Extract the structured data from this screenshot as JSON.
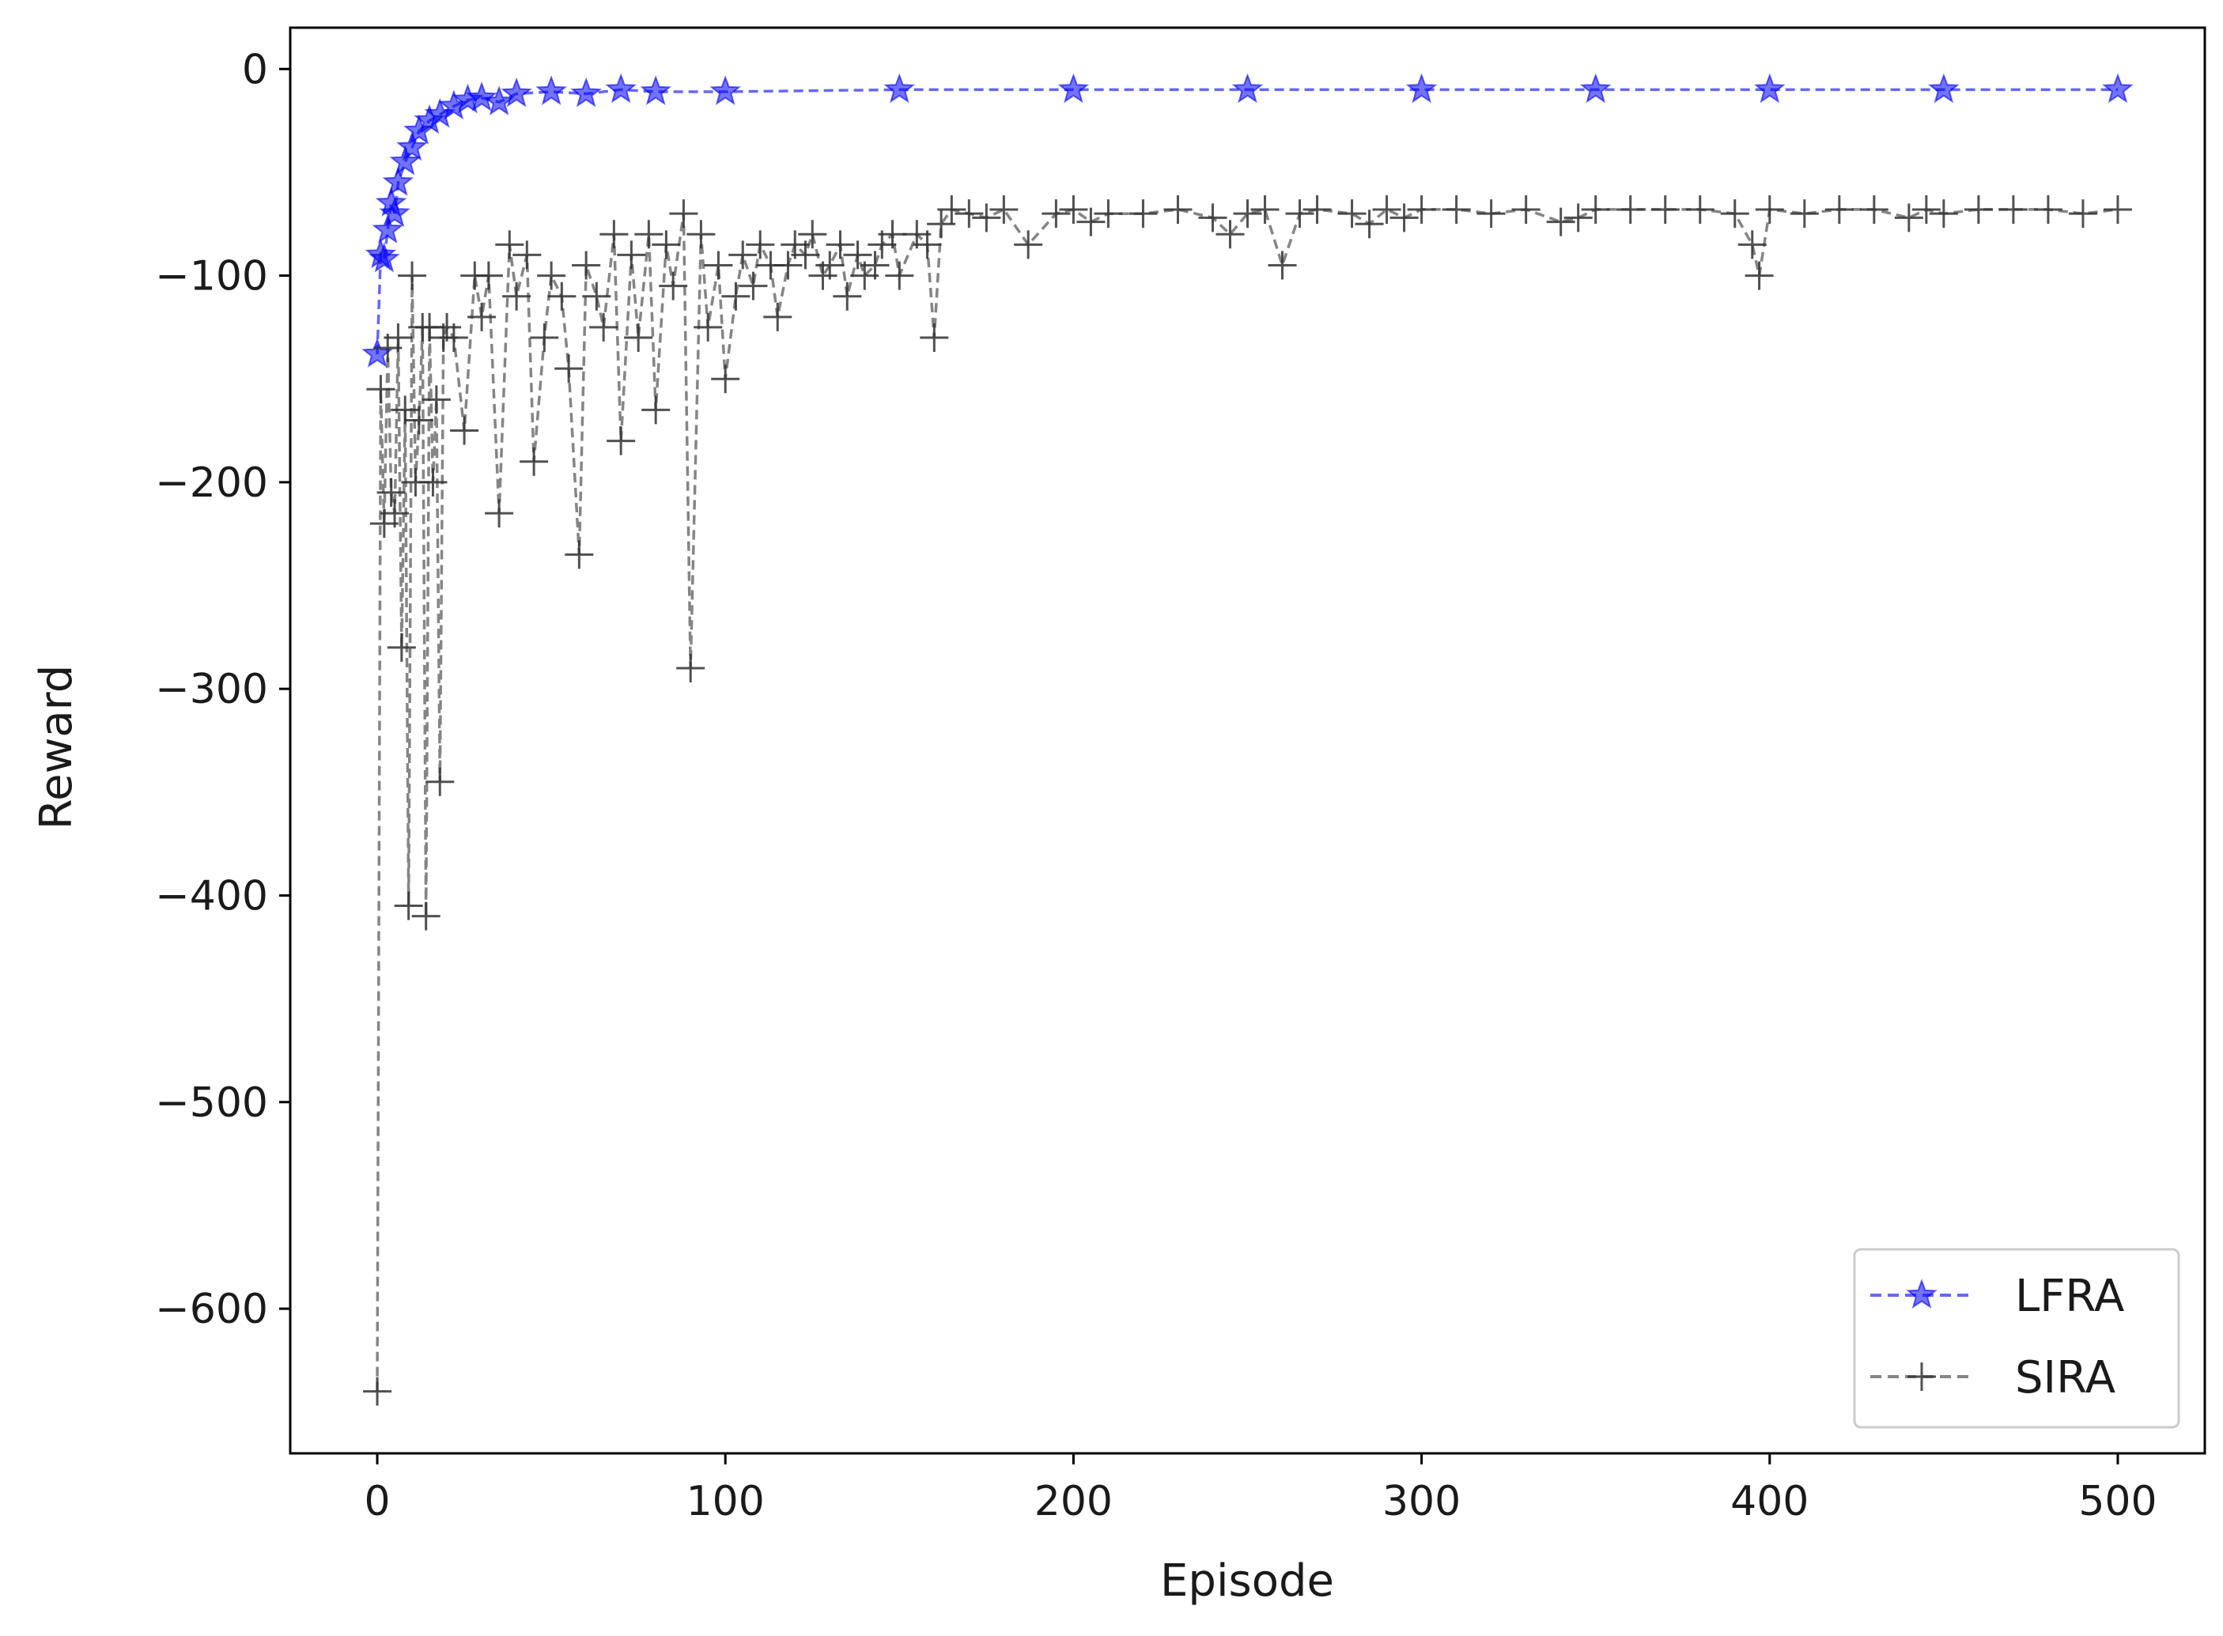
{
  "chart_data": {
    "type": "line",
    "title": "",
    "xlabel": "Episode",
    "ylabel": "Reward",
    "xlim": [
      -25,
      525
    ],
    "ylim": [
      -670,
      20
    ],
    "xticks": [
      0,
      100,
      200,
      300,
      400,
      500
    ],
    "xtick_labels": [
      "0",
      "100",
      "200",
      "300",
      "400",
      "500"
    ],
    "yticks": [
      0,
      -100,
      -200,
      -300,
      -400,
      -500,
      -600
    ],
    "ytick_labels": [
      "0",
      "−100",
      "−200",
      "−300",
      "−400",
      "−500",
      "−600"
    ],
    "grid": false,
    "legend_position": "lower-right",
    "series": [
      {
        "name": "LFRA",
        "color": "#0000ff",
        "marker": "star",
        "linestyle": "dashed",
        "x": [
          0,
          1,
          2,
          3,
          4,
          5,
          6,
          8,
          10,
          12,
          15,
          18,
          22,
          26,
          30,
          35,
          40,
          50,
          60,
          70,
          80,
          100,
          150,
          200,
          250,
          300,
          350,
          400,
          450,
          500
        ],
        "y": [
          -138,
          -90,
          -92,
          -78,
          -65,
          -70,
          -55,
          -45,
          -38,
          -30,
          -25,
          -22,
          -18,
          -15,
          -14,
          -16,
          -12,
          -11,
          -12,
          -10,
          -11,
          -11,
          -10,
          -10,
          -10,
          -10,
          -10,
          -10,
          -10,
          -10
        ]
      },
      {
        "name": "SIRA",
        "color": "#333333",
        "marker": "plus",
        "linestyle": "dashed",
        "x": [
          0,
          1,
          2,
          3,
          4,
          5,
          6,
          7,
          8,
          9,
          10,
          11,
          12,
          13,
          14,
          15,
          16,
          17,
          18,
          19,
          20,
          22,
          25,
          28,
          30,
          32,
          35,
          38,
          40,
          43,
          45,
          48,
          50,
          53,
          55,
          58,
          60,
          63,
          65,
          68,
          70,
          73,
          75,
          78,
          80,
          83,
          85,
          88,
          90,
          93,
          95,
          98,
          100,
          103,
          105,
          108,
          110,
          113,
          115,
          118,
          120,
          123,
          125,
          128,
          130,
          133,
          135,
          138,
          140,
          143,
          145,
          148,
          150,
          155,
          158,
          160,
          162,
          165,
          170,
          175,
          180,
          187,
          195,
          200,
          205,
          210,
          220,
          230,
          240,
          245,
          250,
          255,
          260,
          265,
          270,
          280,
          285,
          290,
          295,
          300,
          310,
          320,
          330,
          340,
          345,
          350,
          360,
          370,
          380,
          390,
          395,
          397,
          400,
          410,
          420,
          430,
          440,
          445,
          450,
          460,
          470,
          480,
          490,
          500
        ],
        "y": [
          -640,
          -155,
          -220,
          -135,
          -205,
          -215,
          -130,
          -280,
          -165,
          -405,
          -100,
          -200,
          -170,
          -125,
          -410,
          -125,
          -200,
          -160,
          -345,
          -130,
          -125,
          -130,
          -175,
          -100,
          -120,
          -100,
          -215,
          -85,
          -110,
          -90,
          -190,
          -130,
          -100,
          -110,
          -145,
          -235,
          -95,
          -110,
          -125,
          -80,
          -180,
          -90,
          -130,
          -80,
          -165,
          -85,
          -105,
          -70,
          -290,
          -80,
          -125,
          -95,
          -150,
          -110,
          -90,
          -105,
          -85,
          -95,
          -120,
          -95,
          -85,
          -90,
          -80,
          -100,
          -95,
          -85,
          -110,
          -90,
          -100,
          -95,
          -85,
          -80,
          -100,
          -80,
          -85,
          -130,
          -75,
          -68,
          -70,
          -72,
          -68,
          -85,
          -70,
          -68,
          -74,
          -70,
          -70,
          -68,
          -72,
          -80,
          -70,
          -68,
          -95,
          -70,
          -68,
          -70,
          -75,
          -68,
          -72,
          -68,
          -68,
          -70,
          -68,
          -74,
          -72,
          -68,
          -68,
          -68,
          -68,
          -70,
          -85,
          -100,
          -68,
          -70,
          -68,
          -68,
          -72,
          -68,
          -70,
          -68,
          -68,
          -68,
          -70,
          -68
        ]
      }
    ]
  }
}
